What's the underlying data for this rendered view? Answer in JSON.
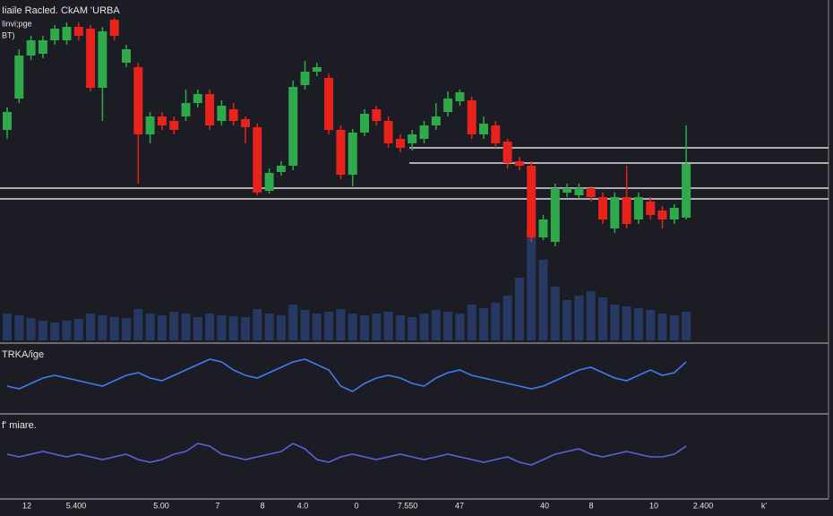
{
  "header": {
    "title": "Iiaile Racled. CkAM 'URBA",
    "subtitle": "Iinvi;pge",
    "note": "BT)"
  },
  "chart_data": {
    "type": "candlestick",
    "ylim": [
      0,
      260
    ],
    "up_color": "#2eaa4a",
    "down_color": "#e8231c",
    "open": [
      135,
      170,
      218,
      220,
      235,
      235,
      250,
      248,
      182,
      258,
      210,
      205,
      130,
      150,
      145,
      150,
      165,
      175,
      145,
      158,
      147,
      138,
      67,
      88,
      95,
      185,
      200,
      193,
      135,
      85,
      132,
      158,
      145,
      125,
      120,
      125,
      140,
      155,
      167,
      168,
      130,
      140,
      122,
      100,
      95,
      15,
      10,
      65,
      62,
      70,
      60,
      25,
      60,
      35,
      55,
      45,
      35,
      37
    ],
    "high": [
      160,
      225,
      240,
      240,
      252,
      255,
      255,
      252,
      250,
      260,
      230,
      210,
      155,
      155,
      150,
      180,
      180,
      180,
      168,
      165,
      150,
      142,
      92,
      100,
      190,
      212,
      210,
      198,
      140,
      136,
      158,
      162,
      150,
      130,
      135,
      145,
      165,
      178,
      180,
      172,
      150,
      145,
      125,
      105,
      100,
      40,
      75,
      75,
      75,
      72,
      65,
      65,
      95,
      65,
      60,
      50,
      52,
      140
    ],
    "low": [
      125,
      165,
      213,
      215,
      230,
      230,
      235,
      178,
      145,
      235,
      205,
      75,
      120,
      135,
      130,
      145,
      160,
      135,
      140,
      140,
      120,
      62,
      64,
      84,
      90,
      180,
      195,
      130,
      80,
      72,
      128,
      140,
      115,
      110,
      112,
      120,
      135,
      150,
      162,
      125,
      125,
      115,
      92,
      90,
      10,
      12,
      5,
      60,
      58,
      55,
      30,
      20,
      25,
      30,
      35,
      25,
      30,
      35
    ],
    "close": [
      155,
      218,
      235,
      235,
      248,
      250,
      240,
      182,
      245,
      240,
      225,
      130,
      150,
      140,
      135,
      165,
      175,
      140,
      162,
      145,
      138,
      65,
      87,
      95,
      183,
      200,
      205,
      135,
      85,
      132,
      153,
      145,
      120,
      115,
      130,
      140,
      150,
      170,
      177,
      130,
      142,
      120,
      98,
      95,
      15,
      35,
      70,
      70,
      70,
      60,
      35,
      60,
      30,
      60,
      40,
      35,
      48,
      97
    ],
    "levels": [
      115,
      98,
      70,
      58
    ],
    "volume": {
      "ylim": [
        0,
        140
      ],
      "color": "#3a6fd8",
      "values": [
        30,
        28,
        25,
        22,
        20,
        22,
        24,
        30,
        28,
        26,
        25,
        35,
        30,
        28,
        32,
        30,
        26,
        30,
        28,
        27,
        26,
        35,
        30,
        28,
        40,
        34,
        30,
        32,
        35,
        30,
        28,
        30,
        32,
        28,
        26,
        30,
        34,
        32,
        30,
        40,
        36,
        42,
        50,
        70,
        120,
        90,
        60,
        45,
        50,
        55,
        48,
        40,
        38,
        36,
        34,
        30,
        28,
        32
      ]
    },
    "indicators": [
      {
        "name": "TRKA/ige",
        "color": "#3f7cf0",
        "ylim": [
          0,
          100
        ],
        "values": [
          40,
          35,
          45,
          55,
          60,
          55,
          50,
          45,
          40,
          50,
          60,
          65,
          55,
          50,
          60,
          70,
          80,
          90,
          85,
          70,
          60,
          55,
          65,
          75,
          85,
          90,
          80,
          70,
          40,
          30,
          45,
          55,
          60,
          55,
          45,
          40,
          55,
          65,
          70,
          60,
          55,
          50,
          45,
          40,
          35,
          40,
          50,
          60,
          70,
          75,
          65,
          55,
          50,
          60,
          70,
          60,
          65,
          85
        ]
      },
      {
        "name": "f' miare.",
        "color": "#5a62d8",
        "ylim": [
          0,
          100
        ],
        "values": [
          55,
          50,
          55,
          60,
          55,
          50,
          55,
          50,
          45,
          50,
          55,
          45,
          40,
          45,
          55,
          60,
          75,
          70,
          55,
          50,
          45,
          50,
          55,
          60,
          75,
          65,
          45,
          40,
          50,
          55,
          50,
          45,
          50,
          55,
          50,
          45,
          50,
          55,
          50,
          45,
          40,
          45,
          50,
          40,
          35,
          45,
          55,
          60,
          65,
          55,
          50,
          55,
          60,
          55,
          50,
          50,
          55,
          70
        ]
      }
    ],
    "x_labels": [
      "12",
      "5.400",
      "5.00",
      "7",
      "8",
      "4.0",
      "0",
      "7.550",
      "47",
      "40",
      "8",
      "10",
      "2.400",
      "k'"
    ]
  }
}
